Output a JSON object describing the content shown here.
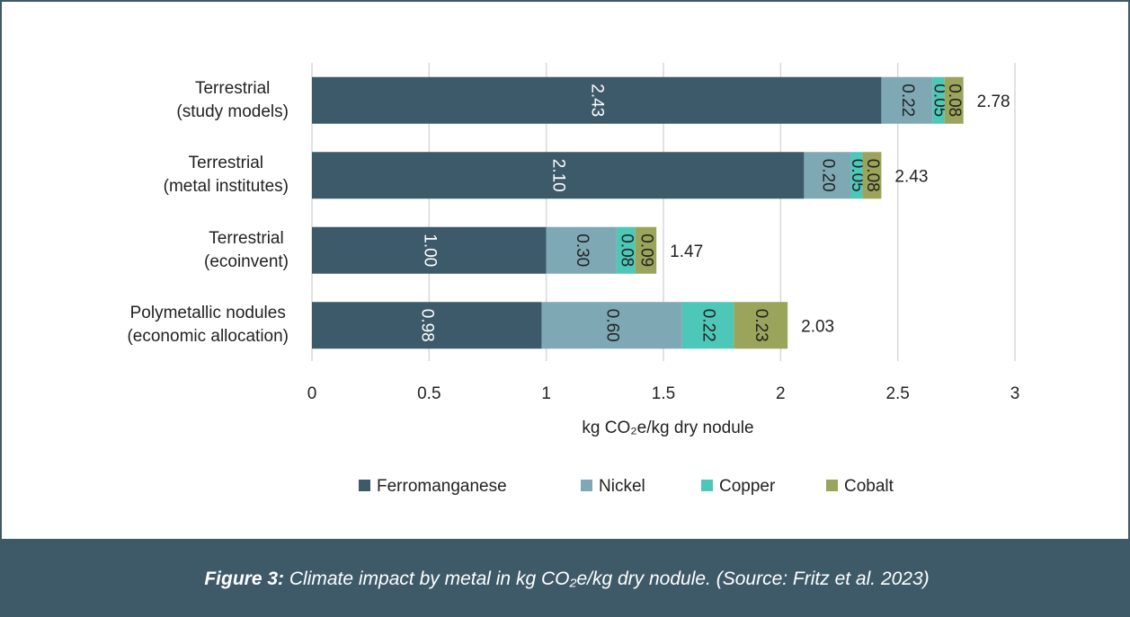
{
  "chart_data": {
    "type": "stacked_bar_horizontal",
    "categories": [
      "Terrestrial\n(study models)",
      "Terrestrial\n(metal institutes)",
      "Terrestrial\n(ecoinvent)",
      "Polymetallic nodules\n(economic allocation)"
    ],
    "series": [
      {
        "name": "Ferromanganese",
        "color": "#3d5a6b",
        "values": [
          2.43,
          2.1,
          1,
          0.98
        ],
        "value_labels": [
          "2.43",
          "2.10",
          "1.00",
          "0.98"
        ]
      },
      {
        "name": "Nickel",
        "color": "#7fa8b5",
        "values": [
          0.22,
          0.2,
          0.3,
          0.6
        ],
        "value_labels": [
          "0.22",
          "0.20",
          "0.30",
          "0.60"
        ]
      },
      {
        "name": "Copper",
        "color": "#4dc7b7",
        "values": [
          0.05,
          0.05,
          0.08,
          0.22
        ],
        "value_labels": [
          "0.05",
          "0.05",
          "0.08",
          "0.22"
        ]
      },
      {
        "name": "Cobalt",
        "color": "#9aa45a",
        "values": [
          0.08,
          0.08,
          0.09,
          0.23
        ],
        "value_labels": [
          "0.08",
          "0.08",
          "0.09",
          "0.23"
        ]
      }
    ],
    "totals": [
      2.78,
      2.43,
      1.47,
      2.03
    ],
    "x_label": "kg CO₂e/kg dry nodule",
    "xlim": [
      0,
      3
    ],
    "xticks": [
      0,
      0.5,
      1,
      1.5,
      2,
      2.5,
      3
    ],
    "grid": true,
    "legend": "bottom"
  },
  "caption": {
    "label": "Figure 3:",
    "text": "Climate impact by metal in kg CO₂e/kg dry nodule. (Source: Fritz et al. 2023)"
  }
}
